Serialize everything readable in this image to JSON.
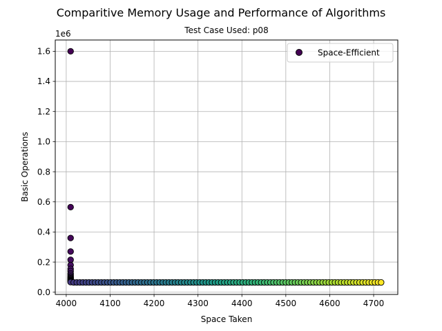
{
  "chart_data": {
    "type": "scatter",
    "title": "Comparitive Memory Usage and Performance of Algorithms",
    "subtitle": "Test Case Used: p08",
    "xlabel": "Space Taken",
    "ylabel": "Basic Operations",
    "y_offset_label": "1e6",
    "xlim": [
      3975,
      4755
    ],
    "ylim": [
      -0.015,
      1.675
    ],
    "xticks": [
      4000,
      4100,
      4200,
      4300,
      4400,
      4500,
      4600,
      4700
    ],
    "xtick_labels": [
      "4000",
      "4100",
      "4200",
      "4300",
      "4400",
      "4500",
      "4600",
      "4700"
    ],
    "yticks": [
      0.0,
      0.2,
      0.4,
      0.6,
      0.8,
      1.0,
      1.2,
      1.4,
      1.6
    ],
    "ytick_labels": [
      "0.0",
      "0.2",
      "0.4",
      "0.6",
      "0.8",
      "1.0",
      "1.2",
      "1.4",
      "1.6"
    ],
    "grid": true,
    "legend": {
      "location": "top-right",
      "label": "Space-Efficient",
      "marker_color": "#440154"
    },
    "colormap": "viridis",
    "marker_edge_color": "#000000",
    "series": [
      {
        "name": "Space-Efficient",
        "x": [
          4010,
          4010,
          4010,
          4010,
          4010,
          4010,
          4010,
          4010,
          4010,
          4010,
          4010,
          4010,
          4010,
          4010,
          4010,
          4010,
          4010,
          4010,
          4010,
          4010,
          4017,
          4024,
          4031,
          4038,
          4045,
          4052,
          4059,
          4066,
          4073,
          4080,
          4087,
          4094,
          4101,
          4108,
          4115,
          4122,
          4129,
          4136,
          4143,
          4150,
          4157,
          4164,
          4171,
          4178,
          4185,
          4192,
          4199,
          4206,
          4213,
          4220,
          4227,
          4234,
          4241,
          4248,
          4255,
          4262,
          4269,
          4276,
          4283,
          4290,
          4297,
          4304,
          4311,
          4318,
          4325,
          4332,
          4339,
          4346,
          4353,
          4360,
          4367,
          4374,
          4381,
          4388,
          4395,
          4402,
          4409,
          4416,
          4423,
          4430,
          4437,
          4444,
          4451,
          4458,
          4465,
          4472,
          4479,
          4486,
          4493,
          4500,
          4507,
          4514,
          4521,
          4528,
          4535,
          4542,
          4549,
          4556,
          4563,
          4570,
          4577,
          4584,
          4591,
          4598,
          4605,
          4612,
          4619,
          4626,
          4633,
          4640,
          4647,
          4654,
          4661,
          4668,
          4675,
          4682,
          4689,
          4696,
          4703,
          4710,
          4717
        ],
        "y": [
          1.6,
          0.565,
          0.36,
          0.27,
          0.215,
          0.18,
          0.155,
          0.14,
          0.125,
          0.115,
          0.105,
          0.098,
          0.092,
          0.087,
          0.082,
          0.078,
          0.075,
          0.072,
          0.069,
          0.067,
          0.065,
          0.065,
          0.065,
          0.065,
          0.065,
          0.065,
          0.065,
          0.065,
          0.065,
          0.065,
          0.065,
          0.065,
          0.065,
          0.065,
          0.065,
          0.065,
          0.065,
          0.065,
          0.065,
          0.065,
          0.065,
          0.065,
          0.065,
          0.065,
          0.065,
          0.065,
          0.065,
          0.065,
          0.065,
          0.065,
          0.065,
          0.065,
          0.065,
          0.065,
          0.065,
          0.065,
          0.065,
          0.065,
          0.065,
          0.065,
          0.065,
          0.065,
          0.065,
          0.065,
          0.065,
          0.065,
          0.065,
          0.065,
          0.065,
          0.065,
          0.065,
          0.065,
          0.065,
          0.065,
          0.065,
          0.065,
          0.065,
          0.065,
          0.065,
          0.065,
          0.065,
          0.065,
          0.065,
          0.065,
          0.065,
          0.065,
          0.065,
          0.065,
          0.065,
          0.065,
          0.065,
          0.065,
          0.065,
          0.065,
          0.065,
          0.065,
          0.065,
          0.065,
          0.065,
          0.065,
          0.065,
          0.065,
          0.065,
          0.065,
          0.065,
          0.065,
          0.065,
          0.065,
          0.065,
          0.065,
          0.065,
          0.065,
          0.065,
          0.065,
          0.065,
          0.065,
          0.065,
          0.065,
          0.065,
          0.065,
          0.065
        ]
      }
    ]
  }
}
